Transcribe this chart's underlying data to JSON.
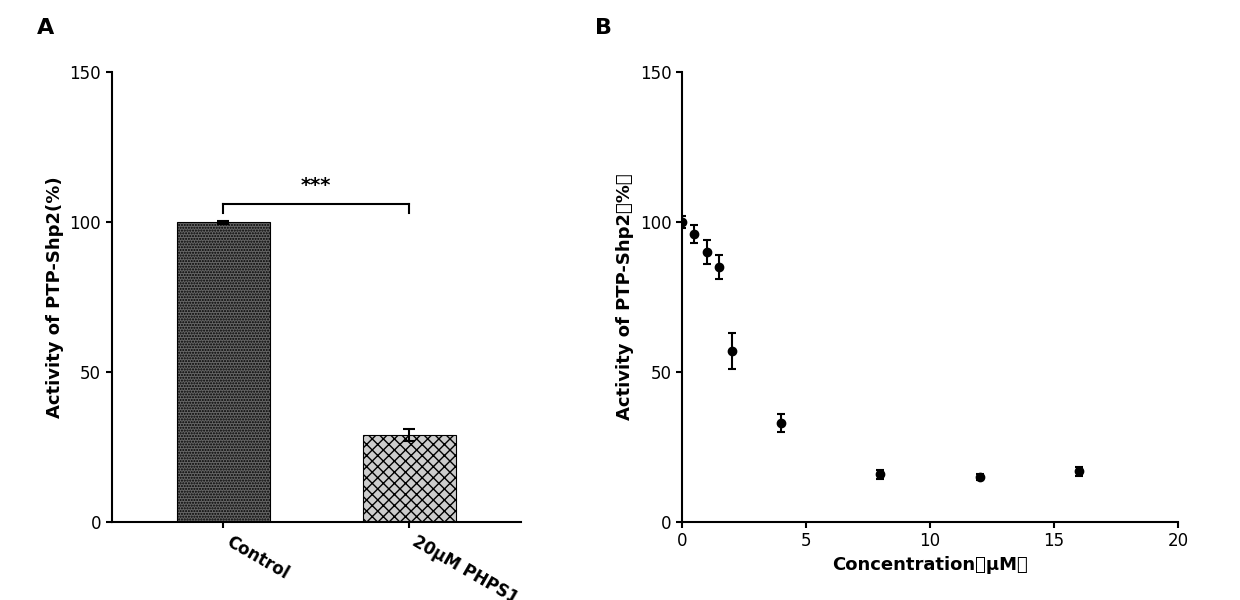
{
  "panel_A": {
    "categories": [
      "Control",
      "20μM PHPS1"
    ],
    "values": [
      100,
      29
    ],
    "errors": [
      0.5,
      2.0
    ],
    "ylabel": "Activity of PTP-Shp2(%)",
    "ylim": [
      0,
      150
    ],
    "yticks": [
      0,
      50,
      100,
      150
    ],
    "significance_text": "***",
    "sig_y": 109,
    "sig_line_y": 106,
    "bar_width": 0.5,
    "label_fontsize": 13,
    "tick_fontsize": 12,
    "panel_label": "A"
  },
  "panel_B": {
    "x": [
      0.0,
      0.5,
      1.0,
      1.5,
      2.0,
      4.0,
      8.0,
      12.0,
      16.0
    ],
    "y": [
      100,
      96,
      90,
      85,
      57,
      33,
      16,
      15,
      17
    ],
    "yerr": [
      2.0,
      3.0,
      4.0,
      4.0,
      6.0,
      3.0,
      1.5,
      1.0,
      1.5
    ],
    "xlabel": "Concentration（μM）",
    "ylabel": "Activity of PTP-Shp2（%）",
    "xlim": [
      0,
      20
    ],
    "ylim": [
      0,
      150
    ],
    "xticks": [
      0,
      5,
      10,
      15,
      20
    ],
    "yticks": [
      0,
      50,
      100,
      150
    ],
    "label_fontsize": 13,
    "tick_fontsize": 12,
    "panel_label": "B",
    "line_color": "#000000",
    "marker": "o",
    "markersize": 6
  },
  "figure_bg": "#ffffff"
}
